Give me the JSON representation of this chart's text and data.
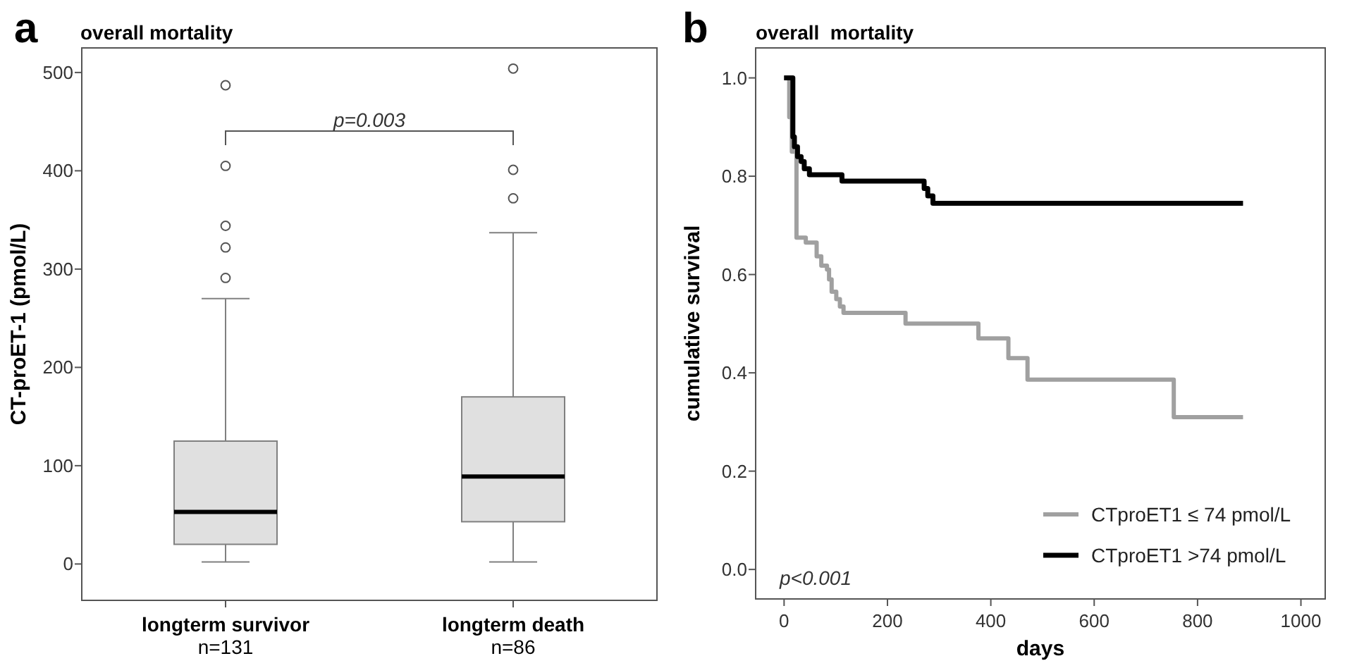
{
  "chart_data": [
    {
      "type": "box",
      "title": "overall mortality",
      "ylabel": "CT-proET-1 (pmol/L)",
      "categories": [
        "longterm survivor\nn=131",
        "longterm death\nn=86"
      ],
      "ylim": [
        -37,
        525
      ],
      "yticks": [
        0,
        100,
        200,
        300,
        400,
        500
      ],
      "color": "#e0e0e0",
      "annotations": [
        "a",
        "p=0.003"
      ],
      "boxes": [
        {
          "low": 2,
          "q1": 20,
          "median": 53,
          "q3": 125,
          "high": 270,
          "outliers": [
            291,
            322,
            344,
            405,
            487
          ]
        },
        {
          "low": 2,
          "q1": 43,
          "median": 89,
          "q3": 170,
          "high": 337,
          "outliers": [
            372,
            401,
            504
          ]
        }
      ]
    },
    {
      "type": "step",
      "title": "overall  mortality",
      "xlabel": "days",
      "ylabel": "cumulative survival",
      "xlim": [
        -55,
        1047
      ],
      "ylim": [
        -0.06,
        1.061
      ],
      "xticks": [
        0,
        200,
        400,
        600,
        800,
        1000
      ],
      "yticks": [
        {
          "value": 0,
          "label": "0.0"
        },
        {
          "value": 0.2,
          "label": "0.2"
        },
        {
          "value": 0.4,
          "label": "0.4"
        },
        {
          "value": 0.6,
          "label": "0.6"
        },
        {
          "value": 0.8,
          "label": "0.8"
        },
        {
          "value": 1,
          "label": "1.0"
        }
      ],
      "legend": "bottom right",
      "annotations": [
        "b",
        "p<0.001"
      ],
      "series": [
        {
          "name": "CTproET1 ≤ 74 pmol/L",
          "color": "#a0a0a0",
          "x": [
            0,
            10,
            15,
            24,
            42,
            63,
            72,
            83,
            87,
            92,
            101,
            108,
            115,
            235,
            376,
            434,
            471,
            754,
            888
          ],
          "values": [
            1.0,
            0.92,
            0.85,
            0.675,
            0.665,
            0.637,
            0.618,
            0.61,
            0.59,
            0.565,
            0.55,
            0.535,
            0.522,
            0.5,
            0.47,
            0.43,
            0.386,
            0.31,
            0.31
          ]
        },
        {
          "name": "CTproET1 >74 pmol/L",
          "color": "#000000",
          "x": [
            0,
            17,
            20,
            26,
            33,
            39,
            49,
            112,
            271,
            278,
            288,
            888
          ],
          "values": [
            1.0,
            0.88,
            0.86,
            0.84,
            0.83,
            0.815,
            0.803,
            0.79,
            0.775,
            0.76,
            0.745,
            0.745
          ]
        }
      ]
    }
  ]
}
